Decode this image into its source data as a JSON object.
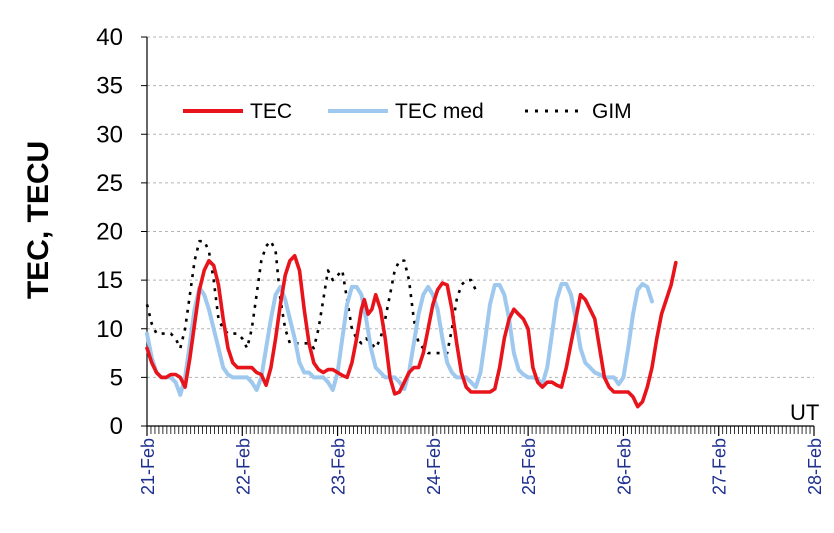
{
  "chart_data": {
    "type": "line",
    "ylabel": "TEC, TECU",
    "x_unit_label": "UT",
    "x_range_days": [
      "21-Feb",
      "28-Feb"
    ],
    "x_ticks": [
      "21-Feb",
      "22-Feb",
      "23-Feb",
      "24-Feb",
      "25-Feb",
      "26-Feb",
      "27-Feb",
      "28-Feb"
    ],
    "ylim": [
      0,
      40
    ],
    "y_ticks": [
      0,
      5,
      10,
      15,
      20,
      25,
      30,
      35,
      40
    ],
    "grid": "horizontal dashed",
    "legend_position": "top-left",
    "series": [
      {
        "name": "TEC",
        "color": "#e8141b",
        "style": "solid",
        "points": [
          [
            0.0,
            8
          ],
          [
            0.05,
            6.5
          ],
          [
            0.1,
            5.5
          ],
          [
            0.15,
            5
          ],
          [
            0.2,
            5
          ],
          [
            0.25,
            5.3
          ],
          [
            0.3,
            5.3
          ],
          [
            0.35,
            5
          ],
          [
            0.4,
            4
          ],
          [
            0.45,
            7
          ],
          [
            0.5,
            10.5
          ],
          [
            0.55,
            14
          ],
          [
            0.6,
            16
          ],
          [
            0.65,
            17
          ],
          [
            0.7,
            16.5
          ],
          [
            0.75,
            14.5
          ],
          [
            0.8,
            11
          ],
          [
            0.85,
            8
          ],
          [
            0.9,
            6.5
          ],
          [
            0.95,
            6
          ],
          [
            1.0,
            6
          ],
          [
            1.05,
            6
          ],
          [
            1.1,
            6
          ],
          [
            1.15,
            5.5
          ],
          [
            1.2,
            5.3
          ],
          [
            1.25,
            4.2
          ],
          [
            1.3,
            6
          ],
          [
            1.35,
            9
          ],
          [
            1.4,
            12.5
          ],
          [
            1.45,
            15.5
          ],
          [
            1.5,
            17
          ],
          [
            1.55,
            17.5
          ],
          [
            1.6,
            16
          ],
          [
            1.65,
            12
          ],
          [
            1.7,
            8.5
          ],
          [
            1.75,
            6.5
          ],
          [
            1.8,
            5.8
          ],
          [
            1.85,
            5.5
          ],
          [
            1.9,
            5.8
          ],
          [
            1.95,
            5.8
          ],
          [
            2.0,
            5.5
          ],
          [
            2.05,
            5.2
          ],
          [
            2.1,
            5
          ],
          [
            2.15,
            6.5
          ],
          [
            2.2,
            9
          ],
          [
            2.25,
            12
          ],
          [
            2.28,
            13
          ],
          [
            2.32,
            11.5
          ],
          [
            2.36,
            12
          ],
          [
            2.4,
            13.5
          ],
          [
            2.45,
            12
          ],
          [
            2.5,
            9
          ],
          [
            2.55,
            5
          ],
          [
            2.6,
            3.3
          ],
          [
            2.65,
            3.5
          ],
          [
            2.7,
            4.5
          ],
          [
            2.75,
            5.5
          ],
          [
            2.8,
            6
          ],
          [
            2.85,
            6
          ],
          [
            2.9,
            7.5
          ],
          [
            2.95,
            10
          ],
          [
            3.0,
            12.5
          ],
          [
            3.05,
            14
          ],
          [
            3.1,
            14.7
          ],
          [
            3.15,
            14.5
          ],
          [
            3.2,
            12
          ],
          [
            3.25,
            8.5
          ],
          [
            3.3,
            5.5
          ],
          [
            3.35,
            4
          ],
          [
            3.4,
            3.5
          ],
          [
            3.45,
            3.5
          ],
          [
            3.5,
            3.5
          ],
          [
            3.55,
            3.5
          ],
          [
            3.6,
            3.5
          ],
          [
            3.65,
            3.8
          ],
          [
            3.7,
            6
          ],
          [
            3.75,
            9
          ],
          [
            3.8,
            11
          ],
          [
            3.85,
            12
          ],
          [
            3.9,
            11.5
          ],
          [
            3.95,
            11
          ],
          [
            4.0,
            10
          ],
          [
            4.05,
            6
          ],
          [
            4.1,
            4.5
          ],
          [
            4.15,
            4
          ],
          [
            4.2,
            4.5
          ],
          [
            4.25,
            4.5
          ],
          [
            4.3,
            4.2
          ],
          [
            4.35,
            4
          ],
          [
            4.4,
            6
          ],
          [
            4.45,
            8.5
          ],
          [
            4.5,
            11
          ],
          [
            4.55,
            13.5
          ],
          [
            4.6,
            13
          ],
          [
            4.65,
            12
          ],
          [
            4.7,
            11
          ],
          [
            4.75,
            8
          ],
          [
            4.8,
            5
          ],
          [
            4.85,
            4
          ],
          [
            4.9,
            3.5
          ],
          [
            4.95,
            3.5
          ],
          [
            5.0,
            3.5
          ],
          [
            5.05,
            3.5
          ],
          [
            5.1,
            3
          ],
          [
            5.15,
            2
          ],
          [
            5.2,
            2.5
          ],
          [
            5.25,
            4
          ],
          [
            5.3,
            6
          ],
          [
            5.35,
            9
          ],
          [
            5.4,
            11.5
          ],
          [
            5.45,
            13
          ],
          [
            5.5,
            14.5
          ],
          [
            5.55,
            16.8
          ]
        ]
      },
      {
        "name": "TEC med",
        "color": "#9ec8ee",
        "style": "solid",
        "points": [
          [
            0.0,
            9.5
          ],
          [
            0.05,
            7
          ],
          [
            0.1,
            5.5
          ],
          [
            0.15,
            5
          ],
          [
            0.2,
            5
          ],
          [
            0.25,
            5
          ],
          [
            0.3,
            4.5
          ],
          [
            0.35,
            3.2
          ],
          [
            0.4,
            5
          ],
          [
            0.45,
            8.5
          ],
          [
            0.5,
            12
          ],
          [
            0.55,
            14.2
          ],
          [
            0.6,
            13.5
          ],
          [
            0.65,
            12
          ],
          [
            0.7,
            10
          ],
          [
            0.75,
            8
          ],
          [
            0.8,
            6
          ],
          [
            0.85,
            5.3
          ],
          [
            0.9,
            5
          ],
          [
            0.95,
            5
          ],
          [
            1.0,
            5
          ],
          [
            1.05,
            5
          ],
          [
            1.1,
            4.5
          ],
          [
            1.15,
            3.7
          ],
          [
            1.2,
            5
          ],
          [
            1.25,
            8
          ],
          [
            1.3,
            11
          ],
          [
            1.35,
            13.5
          ],
          [
            1.4,
            14.3
          ],
          [
            1.45,
            13
          ],
          [
            1.5,
            11
          ],
          [
            1.55,
            9
          ],
          [
            1.6,
            6.5
          ],
          [
            1.65,
            5.5
          ],
          [
            1.7,
            5.5
          ],
          [
            1.75,
            5
          ],
          [
            1.8,
            5
          ],
          [
            1.85,
            5
          ],
          [
            1.9,
            4.5
          ],
          [
            1.95,
            3.7
          ],
          [
            2.0,
            5.5
          ],
          [
            2.05,
            9
          ],
          [
            2.1,
            12.5
          ],
          [
            2.15,
            14.3
          ],
          [
            2.2,
            14.3
          ],
          [
            2.25,
            13.5
          ],
          [
            2.3,
            11
          ],
          [
            2.35,
            8
          ],
          [
            2.4,
            6
          ],
          [
            2.45,
            5.5
          ],
          [
            2.5,
            5
          ],
          [
            2.55,
            5
          ],
          [
            2.6,
            5
          ],
          [
            2.65,
            4.5
          ],
          [
            2.7,
            3.8
          ],
          [
            2.75,
            5.5
          ],
          [
            2.8,
            8.5
          ],
          [
            2.85,
            11.5
          ],
          [
            2.9,
            13.5
          ],
          [
            2.95,
            14.3
          ],
          [
            3.0,
            13.5
          ],
          [
            3.05,
            12
          ],
          [
            3.1,
            9
          ],
          [
            3.15,
            6.5
          ],
          [
            3.2,
            5.5
          ],
          [
            3.25,
            5
          ],
          [
            3.3,
            5
          ],
          [
            3.35,
            5
          ],
          [
            3.4,
            4.5
          ],
          [
            3.45,
            4
          ],
          [
            3.5,
            5.5
          ],
          [
            3.55,
            9
          ],
          [
            3.6,
            12.5
          ],
          [
            3.65,
            14.5
          ],
          [
            3.7,
            14.5
          ],
          [
            3.75,
            13.5
          ],
          [
            3.8,
            11
          ],
          [
            3.85,
            7.5
          ],
          [
            3.9,
            5.8
          ],
          [
            3.95,
            5.3
          ],
          [
            4.0,
            5
          ],
          [
            4.05,
            5
          ],
          [
            4.1,
            4.8
          ],
          [
            4.15,
            4.3
          ],
          [
            4.2,
            6
          ],
          [
            4.25,
            9.5
          ],
          [
            4.3,
            13
          ],
          [
            4.35,
            14.6
          ],
          [
            4.4,
            14.6
          ],
          [
            4.45,
            13.5
          ],
          [
            4.5,
            11
          ],
          [
            4.55,
            8
          ],
          [
            4.6,
            6.5
          ],
          [
            4.65,
            6
          ],
          [
            4.7,
            5.5
          ],
          [
            4.75,
            5.3
          ],
          [
            4.8,
            5
          ],
          [
            4.85,
            5
          ],
          [
            4.9,
            5
          ],
          [
            4.95,
            4.3
          ],
          [
            5.0,
            5
          ],
          [
            5.05,
            8
          ],
          [
            5.1,
            11.5
          ],
          [
            5.15,
            14
          ],
          [
            5.2,
            14.6
          ],
          [
            5.25,
            14.3
          ],
          [
            5.3,
            12.8
          ]
        ]
      },
      {
        "name": "GIM",
        "color": "#000000",
        "style": "dotted",
        "points": [
          [
            0.0,
            12.5
          ],
          [
            0.05,
            10.5
          ],
          [
            0.1,
            9.5
          ],
          [
            0.15,
            9.5
          ],
          [
            0.2,
            9.5
          ],
          [
            0.25,
            9.5
          ],
          [
            0.3,
            9
          ],
          [
            0.35,
            8
          ],
          [
            0.4,
            10
          ],
          [
            0.45,
            13.5
          ],
          [
            0.5,
            17
          ],
          [
            0.55,
            19
          ],
          [
            0.6,
            19
          ],
          [
            0.65,
            18
          ],
          [
            0.7,
            15
          ],
          [
            0.75,
            11
          ],
          [
            0.8,
            10
          ],
          [
            0.85,
            9.5
          ],
          [
            0.9,
            9.5
          ],
          [
            0.95,
            9.5
          ],
          [
            1.0,
            9
          ],
          [
            1.05,
            8
          ],
          [
            1.1,
            10
          ],
          [
            1.15,
            13.5
          ],
          [
            1.2,
            17
          ],
          [
            1.25,
            18.5
          ],
          [
            1.3,
            19
          ],
          [
            1.35,
            18
          ],
          [
            1.4,
            13
          ],
          [
            1.45,
            10
          ],
          [
            1.5,
            8.5
          ],
          [
            1.55,
            8.5
          ],
          [
            1.6,
            8.5
          ],
          [
            1.65,
            8.5
          ],
          [
            1.7,
            8.5
          ],
          [
            1.75,
            8
          ],
          [
            1.8,
            10
          ],
          [
            1.85,
            13
          ],
          [
            1.9,
            16
          ],
          [
            1.95,
            15
          ],
          [
            2.0,
            15.5
          ],
          [
            2.05,
            16
          ],
          [
            2.1,
            13
          ],
          [
            2.15,
            10
          ],
          [
            2.2,
            9
          ],
          [
            2.25,
            8.5
          ],
          [
            2.3,
            9
          ],
          [
            2.35,
            8.5
          ],
          [
            2.4,
            8
          ],
          [
            2.45,
            9
          ],
          [
            2.5,
            11
          ],
          [
            2.55,
            13.5
          ],
          [
            2.6,
            16
          ],
          [
            2.65,
            17
          ],
          [
            2.7,
            17
          ],
          [
            2.75,
            15
          ],
          [
            2.8,
            11
          ],
          [
            2.85,
            8.5
          ],
          [
            2.9,
            8
          ],
          [
            2.95,
            7.5
          ],
          [
            3.0,
            7.5
          ],
          [
            3.05,
            7.5
          ],
          [
            3.1,
            7.5
          ],
          [
            3.15,
            7.5
          ],
          [
            3.2,
            10
          ],
          [
            3.25,
            13
          ],
          [
            3.3,
            14.5
          ],
          [
            3.35,
            15
          ],
          [
            3.4,
            15
          ],
          [
            3.45,
            14
          ],
          [
            3.5,
            14
          ]
        ]
      }
    ]
  }
}
